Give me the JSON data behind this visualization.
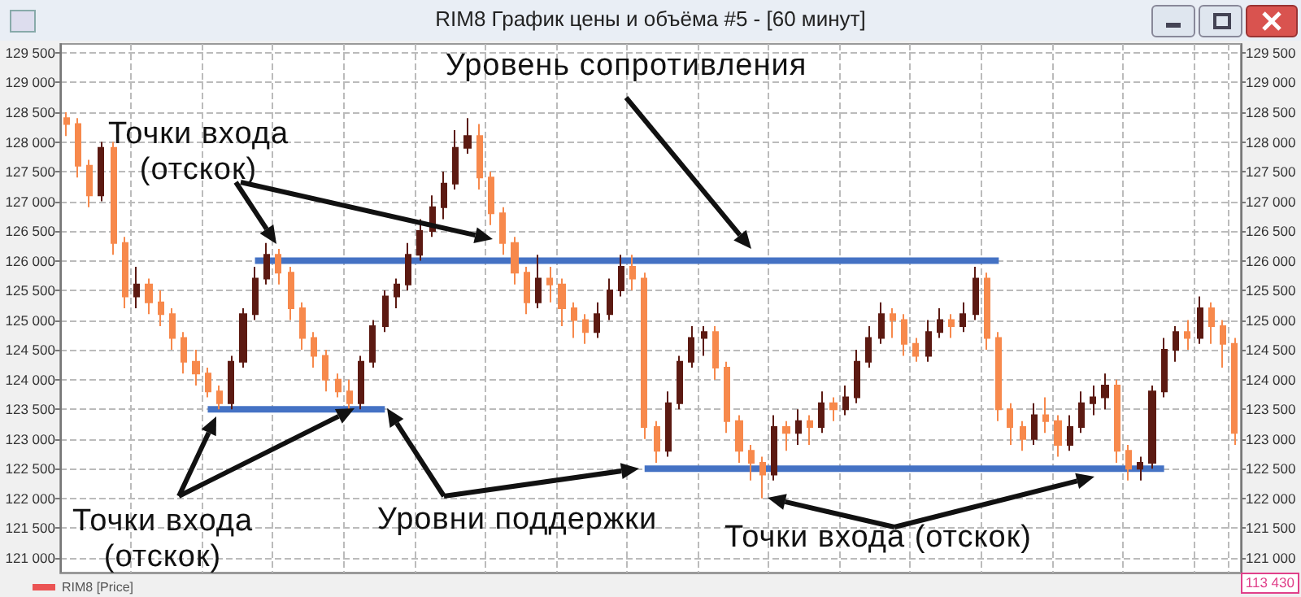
{
  "chart_data": {
    "type": "candlestick",
    "title": "RIM8 График цены и объёма #5 - [60 минут]",
    "categories": [
      null,
      null,
      null,
      null,
      null,
      null,
      null,
      null,
      null,
      null,
      null,
      null,
      null,
      null,
      null,
      null,
      null,
      null,
      null,
      null,
      null,
      null,
      null,
      null,
      null,
      null,
      null,
      null,
      null,
      null,
      null,
      null,
      null,
      null,
      null,
      null,
      null,
      null,
      null,
      null,
      null,
      null,
      null,
      null,
      null,
      null,
      null,
      null,
      null,
      null,
      null,
      null,
      null,
      null,
      null,
      null,
      null,
      null,
      null,
      null,
      null,
      null,
      null,
      null,
      null,
      null,
      null,
      null,
      null,
      null,
      null,
      null,
      null,
      null,
      null,
      null,
      null,
      null,
      null,
      null,
      null,
      null,
      null,
      null,
      null,
      null,
      null,
      null,
      null,
      null,
      null,
      null,
      null,
      null,
      null,
      null,
      null,
      null,
      null,
      null
    ],
    "series": [
      {
        "name": "RIM8 [Price]",
        "color": "#f0509a",
        "ohlc": [
          [
            128400,
            128500,
            128100,
            128300
          ],
          [
            128300,
            128400,
            127400,
            127600
          ],
          [
            127600,
            127700,
            126900,
            127100
          ],
          [
            127100,
            128000,
            127000,
            127900
          ],
          [
            127900,
            128000,
            126100,
            126300
          ],
          [
            126300,
            126400,
            125200,
            125400
          ],
          [
            125400,
            125900,
            125200,
            125600
          ],
          [
            125600,
            125700,
            125100,
            125300
          ],
          [
            125300,
            125500,
            124900,
            125100
          ],
          [
            125100,
            125200,
            124500,
            124700
          ],
          [
            124700,
            124800,
            124100,
            124300
          ],
          [
            124300,
            124500,
            123900,
            124100
          ],
          [
            124100,
            124200,
            123700,
            123800
          ],
          [
            123800,
            123900,
            123500,
            123600
          ],
          [
            123600,
            124400,
            123500,
            124300
          ],
          [
            124300,
            125200,
            124200,
            125100
          ],
          [
            125100,
            125900,
            125000,
            125700
          ],
          [
            125700,
            126300,
            125600,
            126100
          ],
          [
            126100,
            126200,
            125600,
            125800
          ],
          [
            125800,
            125900,
            125000,
            125200
          ],
          [
            125200,
            125300,
            124500,
            124700
          ],
          [
            124700,
            124800,
            124200,
            124400
          ],
          [
            124400,
            124500,
            123800,
            124000
          ],
          [
            124000,
            124100,
            123700,
            123800
          ],
          [
            123800,
            124000,
            123500,
            123600
          ],
          [
            123600,
            124400,
            123500,
            124300
          ],
          [
            124300,
            125000,
            124200,
            124900
          ],
          [
            124900,
            125500,
            124800,
            125400
          ],
          [
            125400,
            125700,
            125200,
            125600
          ],
          [
            125600,
            126300,
            125500,
            126100
          ],
          [
            126100,
            126700,
            126000,
            126500
          ],
          [
            126500,
            127100,
            126400,
            126900
          ],
          [
            126900,
            127500,
            126700,
            127300
          ],
          [
            127300,
            128200,
            127200,
            127900
          ],
          [
            127900,
            128400,
            127800,
            128100
          ],
          [
            128100,
            128300,
            127200,
            127400
          ],
          [
            127400,
            127500,
            126600,
            126800
          ],
          [
            126800,
            126900,
            126100,
            126300
          ],
          [
            126300,
            126400,
            125600,
            125800
          ],
          [
            125800,
            125900,
            125100,
            125300
          ],
          [
            125300,
            126100,
            125200,
            125700
          ],
          [
            125700,
            125900,
            125300,
            125600
          ],
          [
            125600,
            125700,
            124900,
            125200
          ],
          [
            125200,
            125300,
            124700,
            125000
          ],
          [
            125000,
            125100,
            124600,
            124800
          ],
          [
            124800,
            125300,
            124700,
            125100
          ],
          [
            125100,
            125700,
            125000,
            125500
          ],
          [
            125500,
            126100,
            125400,
            125900
          ],
          [
            125900,
            126100,
            125500,
            125700
          ],
          [
            125700,
            125800,
            123000,
            123200
          ],
          [
            123200,
            123300,
            122600,
            122800
          ],
          [
            122800,
            123800,
            122700,
            123600
          ],
          [
            123600,
            124400,
            123500,
            124300
          ],
          [
            124300,
            124900,
            124200,
            124700
          ],
          [
            124700,
            124900,
            124400,
            124800
          ],
          [
            124800,
            124900,
            124000,
            124200
          ],
          [
            124200,
            124300,
            123100,
            123300
          ],
          [
            123300,
            123400,
            122600,
            122800
          ],
          [
            122800,
            122900,
            122300,
            122600
          ],
          [
            122600,
            122700,
            122000,
            122400
          ],
          [
            122400,
            123400,
            122300,
            123200
          ],
          [
            123200,
            123300,
            122800,
            123100
          ],
          [
            123100,
            123500,
            122900,
            123300
          ],
          [
            123300,
            123400,
            122900,
            123200
          ],
          [
            123200,
            123800,
            123100,
            123600
          ],
          [
            123600,
            123700,
            123300,
            123500
          ],
          [
            123500,
            123900,
            123400,
            123700
          ],
          [
            123700,
            124500,
            123600,
            124300
          ],
          [
            124300,
            124900,
            124200,
            124700
          ],
          [
            124700,
            125300,
            124600,
            125100
          ],
          [
            125100,
            125200,
            124700,
            125000
          ],
          [
            125000,
            125100,
            124400,
            124600
          ],
          [
            124600,
            124700,
            124300,
            124400
          ],
          [
            124400,
            125000,
            124300,
            124800
          ],
          [
            124800,
            125200,
            124700,
            125000
          ],
          [
            125000,
            125100,
            124700,
            124900
          ],
          [
            124900,
            125300,
            124800,
            125100
          ],
          [
            125100,
            125900,
            125000,
            125700
          ],
          [
            125700,
            125800,
            124500,
            124700
          ],
          [
            124700,
            124800,
            123300,
            123500
          ],
          [
            123500,
            123600,
            122900,
            123200
          ],
          [
            123200,
            123300,
            122800,
            123000
          ],
          [
            123000,
            123600,
            122900,
            123400
          ],
          [
            123400,
            123700,
            123100,
            123300
          ],
          [
            123300,
            123400,
            122700,
            122900
          ],
          [
            122900,
            123400,
            122800,
            123200
          ],
          [
            123200,
            123800,
            123100,
            123600
          ],
          [
            123600,
            123900,
            123400,
            123700
          ],
          [
            123700,
            124100,
            123500,
            123900
          ],
          [
            123900,
            124000,
            122600,
            122800
          ],
          [
            122800,
            122900,
            122300,
            122500
          ],
          [
            122500,
            122700,
            122300,
            122600
          ],
          [
            122600,
            123900,
            122500,
            123800
          ],
          [
            123800,
            124700,
            123700,
            124500
          ],
          [
            124500,
            124900,
            124300,
            124800
          ],
          [
            124800,
            125000,
            124500,
            124700
          ],
          [
            124700,
            125400,
            124600,
            125200
          ],
          [
            125200,
            125300,
            124600,
            124900
          ],
          [
            124900,
            125000,
            124200,
            124600
          ],
          [
            124600,
            124700,
            122900,
            123100
          ]
        ],
        "colors": [
          "#f7894c",
          "#f7894c",
          "#f7894c",
          "#5c1a12",
          "#f7894c",
          "#f7894c",
          "#5c1a12",
          "#f7894c",
          "#f7894c",
          "#f7894c",
          "#f7894c",
          "#f7894c",
          "#f7894c",
          "#f7894c",
          "#5c1a12",
          "#5c1a12",
          "#5c1a12",
          "#5c1a12",
          "#f7894c",
          "#f7894c",
          "#f7894c",
          "#f7894c",
          "#f7894c",
          "#f7894c",
          "#f7894c",
          "#5c1a12",
          "#5c1a12",
          "#5c1a12",
          "#5c1a12",
          "#5c1a12",
          "#5c1a12",
          "#5c1a12",
          "#5c1a12",
          "#5c1a12",
          "#5c1a12",
          "#f7894c",
          "#f7894c",
          "#f7894c",
          "#f7894c",
          "#f7894c",
          "#5c1a12",
          "#f7894c",
          "#f7894c",
          "#f7894c",
          "#f7894c",
          "#5c1a12",
          "#5c1a12",
          "#5c1a12",
          "#f7894c",
          "#f7894c",
          "#f7894c",
          "#5c1a12",
          "#5c1a12",
          "#5c1a12",
          "#5c1a12",
          "#f7894c",
          "#f7894c",
          "#f7894c",
          "#f7894c",
          "#f7894c",
          "#5c1a12",
          "#f7894c",
          "#5c1a12",
          "#f7894c",
          "#5c1a12",
          "#f7894c",
          "#5c1a12",
          "#5c1a12",
          "#5c1a12",
          "#5c1a12",
          "#f7894c",
          "#f7894c",
          "#f7894c",
          "#5c1a12",
          "#5c1a12",
          "#f7894c",
          "#5c1a12",
          "#5c1a12",
          "#f7894c",
          "#f7894c",
          "#f7894c",
          "#f7894c",
          "#5c1a12",
          "#f7894c",
          "#f7894c",
          "#5c1a12",
          "#5c1a12",
          "#5c1a12",
          "#5c1a12",
          "#f7894c",
          "#f7894c",
          "#5c1a12",
          "#5c1a12",
          "#5c1a12",
          "#5c1a12",
          "#f7894c",
          "#5c1a12",
          "#f7894c",
          "#f7894c",
          "#f7894c"
        ]
      },
      {
        "type": "line",
        "color": "#4472c4",
        "values": [
          null,
          null,
          null,
          null,
          null,
          null,
          null,
          null,
          null,
          null,
          null,
          null,
          null,
          null,
          null,
          null,
          126000,
          126000,
          126000,
          126000,
          126000,
          126000,
          126000,
          126000,
          126000,
          126000,
          126000,
          126000,
          126000,
          126000,
          126000,
          126000,
          126000,
          126000,
          126000,
          126000,
          126000,
          126000,
          126000,
          126000,
          126000,
          126000,
          126000,
          126000,
          126000,
          126000,
          126000,
          126000,
          126000,
          126000,
          126000,
          126000,
          126000,
          126000,
          126000,
          126000,
          126000,
          126000,
          126000,
          126000,
          126000,
          126000,
          126000,
          126000,
          126000,
          126000,
          126000,
          126000,
          126000,
          126000,
          126000,
          126000,
          126000,
          126000,
          126000,
          126000,
          126000,
          126000,
          126000,
          126000,
          null,
          null,
          null,
          null,
          null,
          null,
          null,
          null,
          null,
          null,
          null,
          null,
          null,
          null,
          null,
          null,
          null,
          null,
          null,
          null
        ]
      },
      {
        "type": "line",
        "color": "#4472c4",
        "values": [
          null,
          null,
          null,
          null,
          null,
          null,
          null,
          null,
          null,
          null,
          null,
          null,
          123500,
          123500,
          123500,
          123500,
          123500,
          123500,
          123500,
          123500,
          123500,
          123500,
          123500,
          123500,
          123500,
          123500,
          123500,
          123500,
          null,
          null,
          null,
          null,
          null,
          null,
          null,
          null,
          null,
          null,
          null,
          null,
          null,
          null,
          null,
          null,
          null,
          null,
          null,
          null,
          null,
          null,
          null,
          null,
          null,
          null,
          null,
          null,
          null,
          null,
          null,
          null,
          null,
          null,
          null,
          null,
          null,
          null,
          null,
          null,
          null,
          null,
          null,
          null,
          null,
          null,
          null,
          null,
          null,
          null,
          null,
          null,
          null,
          null,
          null,
          null,
          null,
          null,
          null,
          null,
          null,
          null,
          null,
          null,
          null,
          null,
          null,
          null,
          null,
          null,
          null,
          null
        ]
      },
      {
        "type": "line",
        "color": "#4472c4",
        "values": [
          null,
          null,
          null,
          null,
          null,
          null,
          null,
          null,
          null,
          null,
          null,
          null,
          null,
          null,
          null,
          null,
          null,
          null,
          null,
          null,
          null,
          null,
          null,
          null,
          null,
          null,
          null,
          null,
          null,
          null,
          null,
          null,
          null,
          null,
          null,
          null,
          null,
          null,
          null,
          null,
          null,
          null,
          null,
          null,
          null,
          null,
          null,
          null,
          null,
          122500,
          122500,
          122500,
          122500,
          122500,
          122500,
          122500,
          122500,
          122500,
          122500,
          122500,
          122500,
          122500,
          122500,
          122500,
          122500,
          122500,
          122500,
          122500,
          122500,
          122500,
          122500,
          122500,
          122500,
          122500,
          122500,
          122500,
          122500,
          122500,
          122500,
          122500,
          122500,
          122500,
          122500,
          122500,
          122500,
          122500,
          122500,
          122500,
          122500,
          122500,
          122500,
          122500,
          122500,
          122500,
          null,
          null,
          null,
          null,
          null,
          null
        ]
      }
    ],
    "ylim": [
      120750,
      129650
    ],
    "yticks": [
      {
        "value": 121000,
        "label": "121 000"
      },
      {
        "value": 121500,
        "label": "121 500"
      },
      {
        "value": 122000,
        "label": "122 000"
      },
      {
        "value": 122500,
        "label": "122 500"
      },
      {
        "value": 123000,
        "label": "123 000"
      },
      {
        "value": 123500,
        "label": "123 500"
      },
      {
        "value": 124000,
        "label": "124 000"
      },
      {
        "value": 124500,
        "label": "124 500"
      },
      {
        "value": 125000,
        "label": "125 000"
      },
      {
        "value": 125500,
        "label": "125 500"
      },
      {
        "value": 126000,
        "label": "126 000"
      },
      {
        "value": 126500,
        "label": "126 500"
      },
      {
        "value": 127000,
        "label": "127 000"
      },
      {
        "value": 127500,
        "label": "127 500"
      },
      {
        "value": 128000,
        "label": "128 000"
      },
      {
        "value": 128500,
        "label": "128 500"
      },
      {
        "value": 129000,
        "label": "129 000"
      },
      {
        "value": 129500,
        "label": "129 500"
      }
    ],
    "y2lim": [
      120750,
      129650
    ],
    "y2ticks": [
      {
        "value": 121000,
        "label": "121 000"
      },
      {
        "value": 121500,
        "label": "121 500"
      },
      {
        "value": 122000,
        "label": "122 000"
      },
      {
        "value": 122500,
        "label": "122 500"
      },
      {
        "value": 123000,
        "label": "123 000"
      },
      {
        "value": 123500,
        "label": "123 500"
      },
      {
        "value": 124000,
        "label": "124 000"
      },
      {
        "value": 124500,
        "label": "124 500"
      },
      {
        "value": 125000,
        "label": "125 000"
      },
      {
        "value": 125500,
        "label": "125 500"
      },
      {
        "value": 126000,
        "label": "126 000"
      },
      {
        "value": 126500,
        "label": "126 500"
      },
      {
        "value": 127000,
        "label": "127 000"
      },
      {
        "value": 127500,
        "label": "127 500"
      },
      {
        "value": 128000,
        "label": "128 000"
      },
      {
        "value": 128500,
        "label": "128 500"
      },
      {
        "value": 129000,
        "label": "129 000"
      },
      {
        "value": 129500,
        "label": "129 500"
      }
    ],
    "tick_labels": "y",
    "grid": true,
    "legend": "bottom left",
    "line_style": "solid",
    "annotations": [
      "Уровень сопротивления",
      "Точки входа\n(отскок)",
      "Точки входа\n(отскок)",
      "Уровни поддержки",
      "Точки входа (отскок)",
      "113 430"
    ]
  }
}
